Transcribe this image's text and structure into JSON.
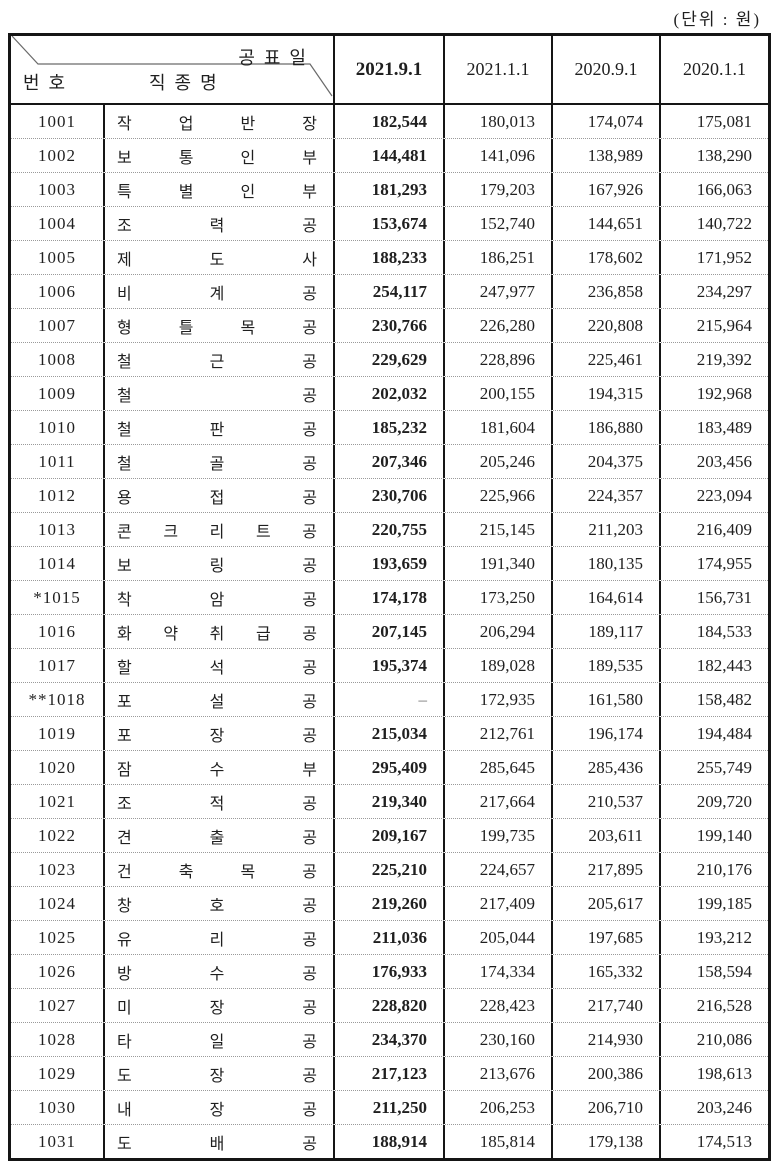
{
  "unit_label": "(단위 : 원)",
  "colors": {
    "border": "#151515",
    "row_divider": "#9a9a9a",
    "text": "#1f1f1f"
  },
  "table": {
    "header": {
      "diagonal": {
        "top_right": "공표일",
        "bottom_left": "번호",
        "bottom_center": "직종명"
      },
      "date_columns": [
        "2021.9.1",
        "2021.1.1",
        "2020.9.1",
        "2020.1.1"
      ]
    },
    "rows": [
      {
        "no": "1001",
        "job": "작업반장",
        "values": [
          "182,544",
          "180,013",
          "174,074",
          "175,081"
        ]
      },
      {
        "no": "1002",
        "job": "보통인부",
        "values": [
          "144,481",
          "141,096",
          "138,989",
          "138,290"
        ]
      },
      {
        "no": "1003",
        "job": "특별인부",
        "values": [
          "181,293",
          "179,203",
          "167,926",
          "166,063"
        ]
      },
      {
        "no": "1004",
        "job": "조력공",
        "values": [
          "153,674",
          "152,740",
          "144,651",
          "140,722"
        ]
      },
      {
        "no": "1005",
        "job": "제도사",
        "values": [
          "188,233",
          "186,251",
          "178,602",
          "171,952"
        ]
      },
      {
        "no": "1006",
        "job": "비계공",
        "values": [
          "254,117",
          "247,977",
          "236,858",
          "234,297"
        ]
      },
      {
        "no": "1007",
        "job": "형틀목공",
        "values": [
          "230,766",
          "226,280",
          "220,808",
          "215,964"
        ]
      },
      {
        "no": "1008",
        "job": "철근공",
        "values": [
          "229,629",
          "228,896",
          "225,461",
          "219,392"
        ]
      },
      {
        "no": "1009",
        "job": "철공",
        "values": [
          "202,032",
          "200,155",
          "194,315",
          "192,968"
        ]
      },
      {
        "no": "1010",
        "job": "철판공",
        "values": [
          "185,232",
          "181,604",
          "186,880",
          "183,489"
        ]
      },
      {
        "no": "1011",
        "job": "철골공",
        "values": [
          "207,346",
          "205,246",
          "204,375",
          "203,456"
        ]
      },
      {
        "no": "1012",
        "job": "용접공",
        "values": [
          "230,706",
          "225,966",
          "224,357",
          "223,094"
        ]
      },
      {
        "no": "1013",
        "job": "콘크리트공",
        "values": [
          "220,755",
          "215,145",
          "211,203",
          "216,409"
        ]
      },
      {
        "no": "1014",
        "job": "보링공",
        "values": [
          "193,659",
          "191,340",
          "180,135",
          "174,955"
        ]
      },
      {
        "no": "*1015",
        "job": "착암공",
        "values": [
          "174,178",
          "173,250",
          "164,614",
          "156,731"
        ]
      },
      {
        "no": "1016",
        "job": "화약취급공",
        "values": [
          "207,145",
          "206,294",
          "189,117",
          "184,533"
        ]
      },
      {
        "no": "1017",
        "job": "할석공",
        "values": [
          "195,374",
          "189,028",
          "189,535",
          "182,443"
        ]
      },
      {
        "no": "**1018",
        "job": "포설공",
        "values": [
          "–",
          "172,935",
          "161,580",
          "158,482"
        ]
      },
      {
        "no": "1019",
        "job": "포장공",
        "values": [
          "215,034",
          "212,761",
          "196,174",
          "194,484"
        ]
      },
      {
        "no": "1020",
        "job": "잠수부",
        "values": [
          "295,409",
          "285,645",
          "285,436",
          "255,749"
        ]
      },
      {
        "no": "1021",
        "job": "조적공",
        "values": [
          "219,340",
          "217,664",
          "210,537",
          "209,720"
        ]
      },
      {
        "no": "1022",
        "job": "견출공",
        "values": [
          "209,167",
          "199,735",
          "203,611",
          "199,140"
        ]
      },
      {
        "no": "1023",
        "job": "건축목공",
        "values": [
          "225,210",
          "224,657",
          "217,895",
          "210,176"
        ]
      },
      {
        "no": "1024",
        "job": "창호공",
        "values": [
          "219,260",
          "217,409",
          "205,617",
          "199,185"
        ]
      },
      {
        "no": "1025",
        "job": "유리공",
        "values": [
          "211,036",
          "205,044",
          "197,685",
          "193,212"
        ]
      },
      {
        "no": "1026",
        "job": "방수공",
        "values": [
          "176,933",
          "174,334",
          "165,332",
          "158,594"
        ]
      },
      {
        "no": "1027",
        "job": "미장공",
        "values": [
          "228,820",
          "228,423",
          "217,740",
          "216,528"
        ]
      },
      {
        "no": "1028",
        "job": "타일공",
        "values": [
          "234,370",
          "230,160",
          "214,930",
          "210,086"
        ]
      },
      {
        "no": "1029",
        "job": "도장공",
        "values": [
          "217,123",
          "213,676",
          "200,386",
          "198,613"
        ]
      },
      {
        "no": "1030",
        "job": "내장공",
        "values": [
          "211,250",
          "206,253",
          "206,710",
          "203,246"
        ]
      },
      {
        "no": "1031",
        "job": "도배공",
        "values": [
          "188,914",
          "185,814",
          "179,138",
          "174,513"
        ]
      }
    ]
  }
}
